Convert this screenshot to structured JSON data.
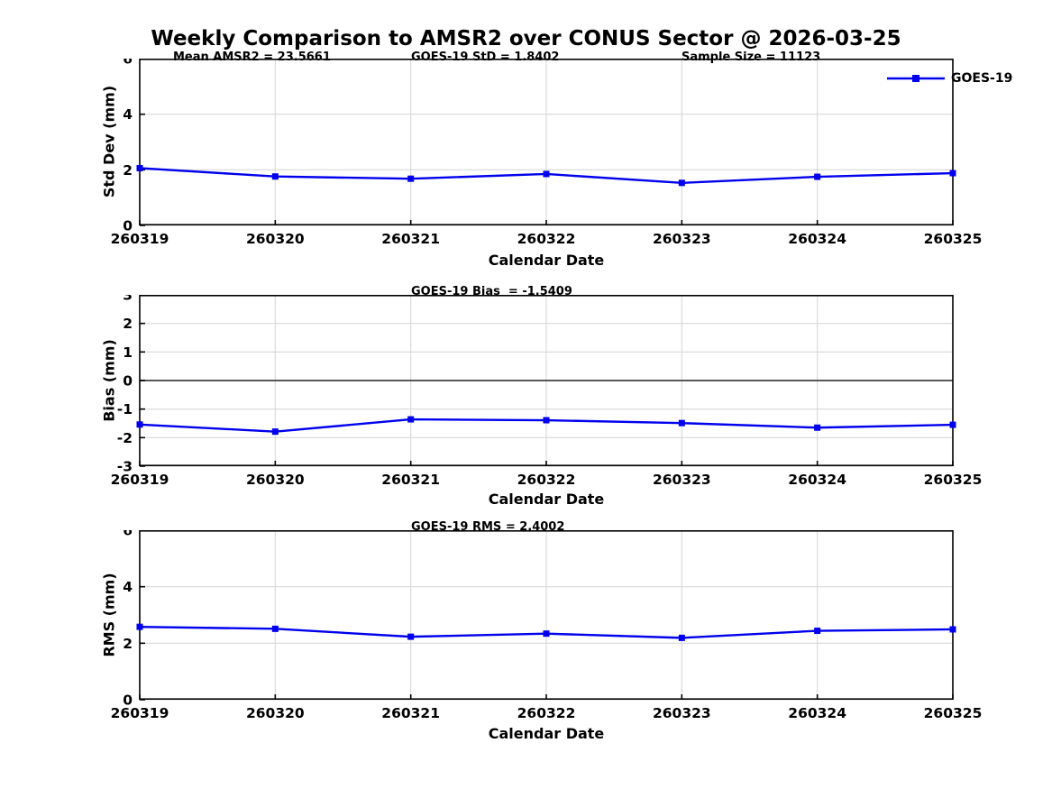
{
  "page": {
    "title": "Weekly Comparison to AMSR2 over CONUS Sector @ 2026-03-25"
  },
  "legend": {
    "label": "GOES-19"
  },
  "colors": {
    "line": "#0000EE",
    "grid": "#D8D8D8",
    "zero_line": "#404040",
    "axis": "#000000",
    "text": "#000000"
  },
  "chart_data": [
    {
      "type": "line",
      "name": "std-dev",
      "title": "",
      "categories": [
        "260319",
        "260320",
        "260321",
        "260322",
        "260323",
        "260324",
        "260325"
      ],
      "series": [
        {
          "name": "GOES-19",
          "values": [
            2.06,
            1.76,
            1.68,
            1.85,
            1.53,
            1.75,
            1.88
          ]
        }
      ],
      "xlabel": "Calendar Date",
      "ylabel": "Std Dev (mm)",
      "ylim": [
        0,
        6
      ],
      "yticks": [
        0,
        2,
        4,
        6
      ],
      "grid": true,
      "legend_position": "top-right",
      "annotations": [
        "Mean AMSR2 = 23.5661",
        "GOES-19 StD = 1.8402",
        "Sample Size = 11123"
      ]
    },
    {
      "type": "line",
      "name": "bias",
      "title": "",
      "categories": [
        "260319",
        "260320",
        "260321",
        "260322",
        "260323",
        "260324",
        "260325"
      ],
      "series": [
        {
          "name": "GOES-19",
          "values": [
            -1.54,
            -1.79,
            -1.36,
            -1.39,
            -1.49,
            -1.65,
            -1.55
          ]
        }
      ],
      "xlabel": "Calendar Date",
      "ylabel": "Bias (mm)",
      "ylim": [
        -3,
        3
      ],
      "yticks": [
        -3,
        -2,
        -1,
        0,
        1,
        2,
        3
      ],
      "grid": true,
      "zero_line": true,
      "annotations": [
        "GOES-19 Bias  = -1.5409"
      ]
    },
    {
      "type": "line",
      "name": "rms",
      "title": "",
      "categories": [
        "260319",
        "260320",
        "260321",
        "260322",
        "260323",
        "260324",
        "260325"
      ],
      "series": [
        {
          "name": "GOES-19",
          "values": [
            2.58,
            2.51,
            2.23,
            2.34,
            2.19,
            2.44,
            2.49
          ]
        }
      ],
      "xlabel": "Calendar Date",
      "ylabel": "RMS (mm)",
      "ylim": [
        0,
        6
      ],
      "yticks": [
        0,
        2,
        4,
        6
      ],
      "grid": true,
      "annotations": [
        "GOES-19 RMS = 2.4002"
      ]
    }
  ]
}
